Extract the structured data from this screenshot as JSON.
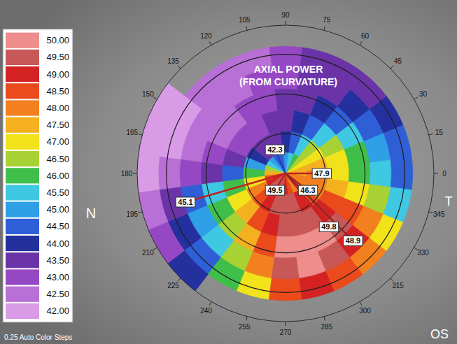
{
  "chart_data": {
    "type": "topography",
    "title": "AXIAL POWER",
    "subtitle": "(FROM CURVATURE)",
    "footnote": "0.25 Auto Color Steps",
    "eye": "OS",
    "side_labels": [
      "N",
      "T"
    ],
    "angle_ticks": [
      0,
      15,
      30,
      45,
      60,
      75,
      90,
      105,
      120,
      135,
      150,
      165,
      180,
      195,
      210,
      225,
      240,
      255,
      270,
      285,
      300,
      315,
      330,
      345
    ],
    "rlim": [
      0,
      5.6
    ],
    "rticks": [
      1.5,
      3,
      4.5
    ],
    "cells": {
      "angles": [
        0,
        15,
        30,
        45,
        60,
        75,
        90,
        105,
        120,
        135,
        150,
        165,
        180,
        195,
        210,
        225,
        240,
        255,
        270,
        285,
        300,
        315,
        330,
        345
      ],
      "radius_edges": [
        0,
        0.8,
        1.6,
        2.4,
        3.2,
        4.0,
        4.8,
        5.6
      ],
      "values": [
        [
          47.5,
          48,
          47,
          46,
          45.5,
          44.5,
          null
        ],
        [
          47.5,
          47.5,
          47,
          46,
          45,
          44.5,
          null
        ],
        [
          47,
          47,
          46.5,
          45.5,
          44.5,
          44,
          null
        ],
        [
          46.5,
          46.5,
          45.5,
          44.5,
          44,
          43.5,
          null
        ],
        [
          46,
          45.5,
          44.5,
          44,
          43.5,
          43.5,
          null
        ],
        [
          45.5,
          44.5,
          44,
          43.5,
          43.5,
          43.5,
          null
        ],
        [
          45,
          44,
          43.5,
          43.5,
          43,
          43,
          null
        ],
        [
          44.5,
          43.5,
          43.5,
          43,
          43,
          42.5,
          null
        ],
        [
          44.5,
          43.5,
          43,
          43,
          42.5,
          42.5,
          null
        ],
        [
          45,
          43.5,
          43,
          42.5,
          42.5,
          42.5,
          null
        ],
        [
          45.5,
          44,
          43,
          42.5,
          42.5,
          42,
          42
        ],
        [
          46.5,
          45,
          43.5,
          43,
          42.5,
          42,
          42
        ],
        [
          47.5,
          46,
          44.5,
          43.5,
          43,
          42.5,
          42
        ],
        [
          48.5,
          47,
          46,
          45.5,
          44.5,
          43.5,
          42.5
        ],
        [
          49,
          48,
          47,
          46,
          45,
          44,
          43
        ],
        [
          49.5,
          48.5,
          47.5,
          46.5,
          45.5,
          44.5,
          44
        ],
        [
          49.5,
          49,
          48.5,
          47.5,
          46.5,
          46,
          null
        ],
        [
          49.5,
          49.5,
          49,
          48.5,
          48,
          47,
          null
        ],
        [
          49,
          49.5,
          49.5,
          50,
          49.5,
          48.5,
          null
        ],
        [
          48.5,
          49.5,
          49.5,
          50,
          50,
          49,
          null
        ],
        [
          48,
          49,
          49.5,
          50,
          49.5,
          48.5,
          null
        ],
        [
          48,
          48.5,
          49,
          49.5,
          49,
          48,
          null
        ],
        [
          48,
          48,
          48.5,
          48.5,
          48,
          47,
          null
        ],
        [
          48,
          48,
          47.5,
          47,
          46.5,
          45.5,
          null
        ]
      ]
    },
    "colorbar": {
      "ticks": [
        {
          "value": 42,
          "label": "42.00"
        },
        {
          "value": 42.5,
          "label": "42.50"
        },
        {
          "value": 43,
          "label": "43.00"
        },
        {
          "value": 43.5,
          "label": "43.50"
        },
        {
          "value": 44,
          "label": "44.00"
        },
        {
          "value": 44.5,
          "label": "44.50"
        },
        {
          "value": 45,
          "label": "45.00"
        },
        {
          "value": 45.5,
          "label": "45.50"
        },
        {
          "value": 46,
          "label": "46.00"
        },
        {
          "value": 46.5,
          "label": "46.50"
        },
        {
          "value": 47,
          "label": "47.00"
        },
        {
          "value": 47.5,
          "label": "47.50"
        },
        {
          "value": 48,
          "label": "48.00"
        },
        {
          "value": 48.5,
          "label": "48.50"
        },
        {
          "value": 49,
          "label": "49.00"
        },
        {
          "value": 49.5,
          "label": "49.50"
        },
        {
          "value": 50,
          "label": "50.00"
        }
      ],
      "colors": [
        "#d99ae6",
        "#b86fd6",
        "#9648c4",
        "#6a34a8",
        "#23309e",
        "#2f5fd6",
        "#2f9fe8",
        "#3fc8e2",
        "#3fbf4a",
        "#a8d234",
        "#f2e21a",
        "#f5b020",
        "#f2801e",
        "#ea4a1c",
        "#d42222",
        "#c85858",
        "#ef8c8c"
      ]
    },
    "readings": [
      {
        "value": 42.3,
        "angle": 114,
        "radius": 0.98,
        "color": "#2a3cc0"
      },
      {
        "value": 47.9,
        "angle": 0,
        "radius": 1.37,
        "color": "#c02020"
      },
      {
        "value": 49.5,
        "angle": 238,
        "radius": 0.75,
        "color": "#c02020"
      },
      {
        "value": 46.3,
        "angle": 323,
        "radius": 1.06,
        "color": "#c02020"
      },
      {
        "value": 49.8,
        "angle": 309,
        "radius": 2.6,
        "color": "#c02020"
      },
      {
        "value": 48.9,
        "angle": 315,
        "radius": 3.6,
        "color": "#8a2a2a"
      },
      {
        "value": 45.1,
        "angle": 196,
        "radius": 3.93,
        "color": "#c02020"
      }
    ]
  }
}
